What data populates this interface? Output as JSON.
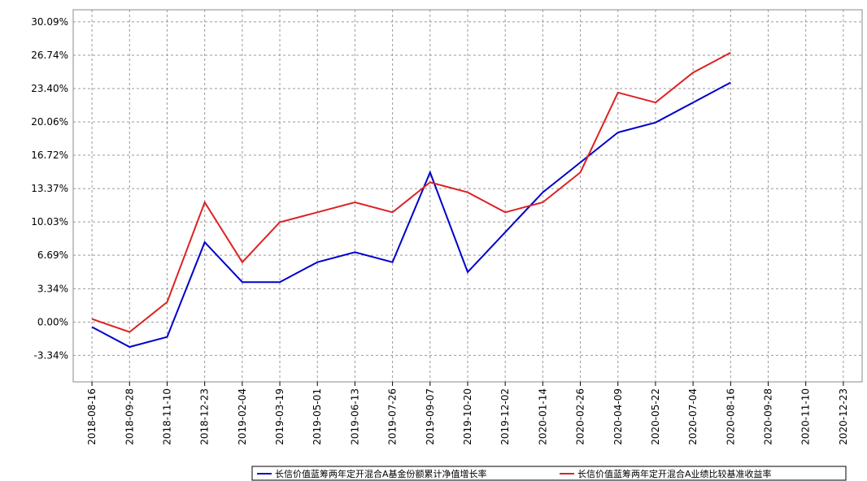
{
  "chart_data": {
    "type": "line",
    "categories": [
      "2018-08-16",
      "2018-09-28",
      "2018-11-10",
      "2018-12-23",
      "2019-02-04",
      "2019-03-19",
      "2019-05-01",
      "2019-06-13",
      "2019-07-26",
      "2019-09-07",
      "2019-10-20",
      "2019-12-02",
      "2020-01-14",
      "2020-02-26",
      "2020-04-09",
      "2020-05-22",
      "2020-07-04",
      "2020-08-16",
      "2020-09-28",
      "2020-11-10",
      "2020-12-23"
    ],
    "series": [
      {
        "name": "长信价值蓝筹两年定开混合A基金份额累计净值增长率",
        "color": "#0000cc",
        "values": [
          -0.5,
          -2.5,
          -1.5,
          8,
          4,
          4,
          6,
          7,
          6,
          15,
          5,
          9,
          13,
          16,
          19,
          20,
          22,
          24,
          null,
          null,
          null
        ]
      },
      {
        "name": "长信价值蓝筹两年定开混合A业绩比较基准收益率",
        "color": "#dd2222",
        "values": [
          0.3,
          -1,
          2,
          12,
          6,
          10,
          11,
          12,
          11,
          14,
          13,
          11,
          12,
          15,
          23,
          22,
          25,
          27,
          null,
          null,
          null
        ]
      }
    ],
    "ylim": [
      -6,
      31.3
    ],
    "yticks": [
      {
        "value": 30.09,
        "label": "30.09%"
      },
      {
        "value": 26.74,
        "label": "26.74%"
      },
      {
        "value": 23.4,
        "label": "23.40%"
      },
      {
        "value": 20.06,
        "label": "20.06%"
      },
      {
        "value": 16.72,
        "label": "16.72%"
      },
      {
        "value": 13.37,
        "label": "13.37%"
      },
      {
        "value": 10.03,
        "label": "10.03%"
      },
      {
        "value": 6.69,
        "label": "6.69%"
      },
      {
        "value": 3.34,
        "label": "3.34%"
      },
      {
        "value": 0.0,
        "label": "0.00%"
      },
      {
        "value": -3.34,
        "label": "-3.34%"
      }
    ],
    "grid": true
  }
}
